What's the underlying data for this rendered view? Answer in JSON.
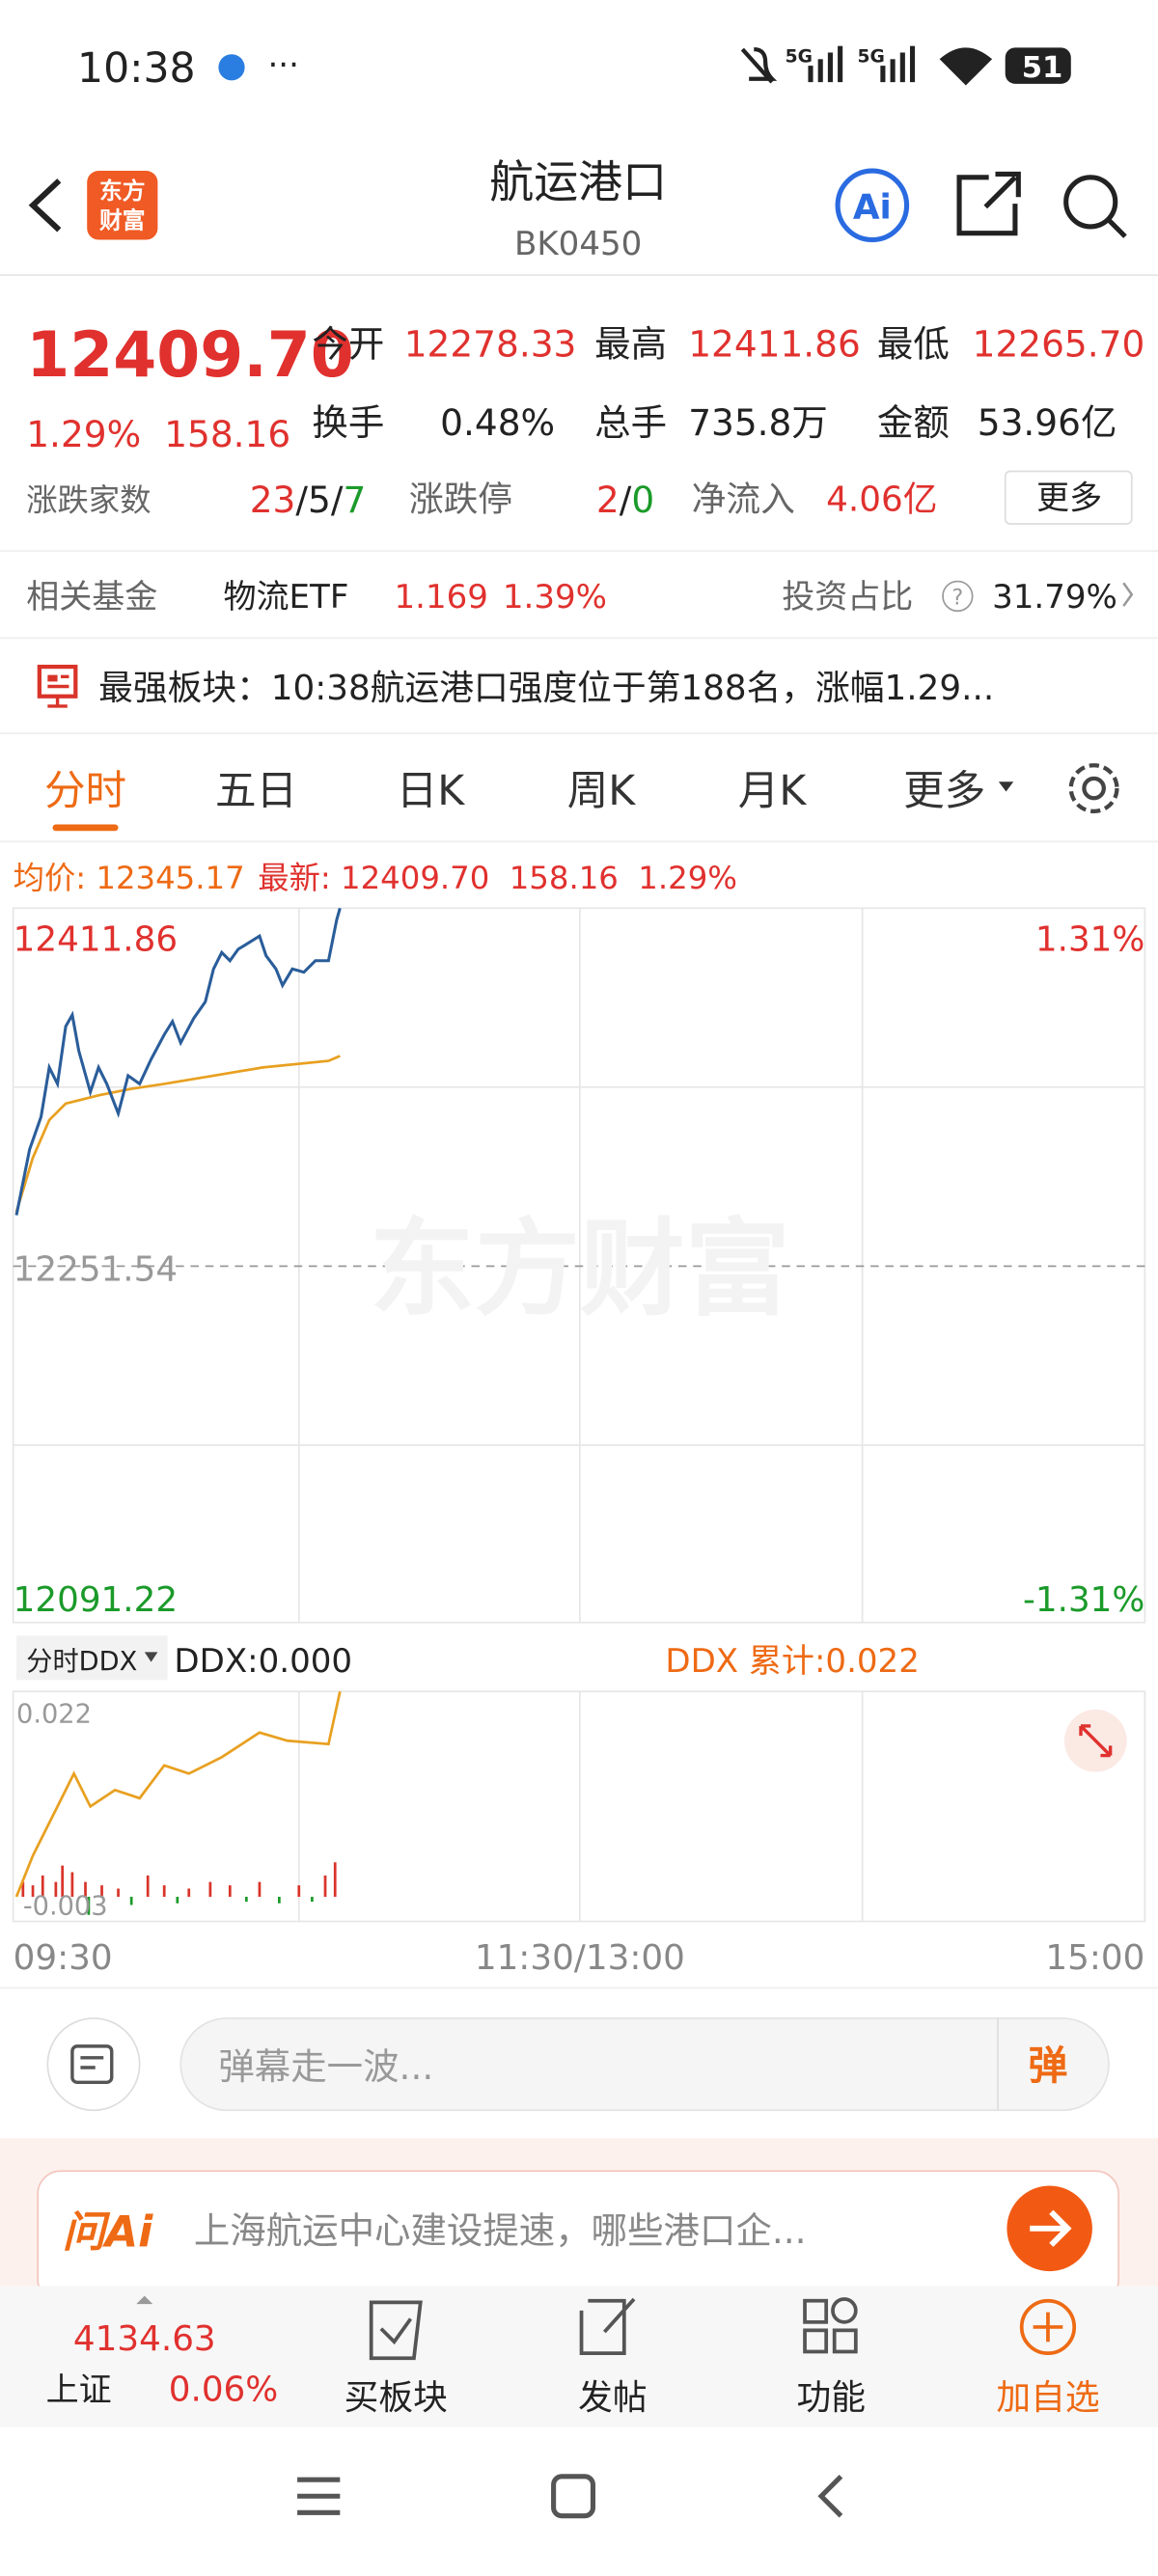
{
  "status": {
    "time": "10:38",
    "network": "5G",
    "battery": "51"
  },
  "header": {
    "title": "航运港口",
    "code": "BK0450",
    "logo": [
      "东方",
      "财富"
    ],
    "ai": "Ai"
  },
  "quote": {
    "price": "12409.70",
    "change_pct": "1.29%",
    "change": "158.16",
    "open_label": "今开",
    "open": "12278.33",
    "high_label": "最高",
    "high": "12411.86",
    "low_label": "最低",
    "low": "12265.70",
    "turnover_label": "换手",
    "turnover": "0.48%",
    "volume_label": "总手",
    "volume": "735.8万",
    "amount_label": "金额",
    "amount": "53.96亿",
    "breadth_label": "涨跌家数",
    "up": "23",
    "sep": "/",
    "flat": "5",
    "down": "7",
    "limit_label": "涨跌停",
    "limit_up": "2",
    "limit_down": "0",
    "net_inflow_label": "净流入",
    "net_inflow": "4.06亿",
    "more": "更多"
  },
  "fund": {
    "label": "相关基金",
    "name": "物流ETF",
    "price": "1.169",
    "pct": "1.39%",
    "ratio_label": "投资占比",
    "help": "?",
    "ratio": "31.79%"
  },
  "news": {
    "text": "最强板块：10:38航运港口强度位于第188名，涨幅1.29..."
  },
  "tabs": [
    "分时",
    "五日",
    "日K",
    "周K",
    "月K",
    "更多"
  ],
  "chart": {
    "avg_label": "均价:",
    "avg": "12345.17",
    "latest_label": "最新:",
    "latest": "12409.70",
    "latest_change": "158.16",
    "latest_pct": "1.29%",
    "y_high": "12411.86",
    "y_mid": "12251.54",
    "y_low": "12091.22",
    "pct_high": "1.31%",
    "pct_low": "-1.31%",
    "watermark": "东方财富",
    "ddx_selector": "分时DDX",
    "ddx": "DDX:0.000",
    "ddx_cum": "DDX 累计:0.022",
    "ddx_top": "0.022",
    "ddx_bottom": "-0.003",
    "times": [
      "09:30",
      "11:30/13:00",
      "15:00"
    ]
  },
  "danmaku": {
    "placeholder": "弹幕走一波...",
    "button": "弹"
  },
  "ai": {
    "logo": "问Ai",
    "text": "上海航运中心建设提速，哪些港口企..."
  },
  "bottom_nav": {
    "index_value": "4134.63",
    "index_name": "上证",
    "index_pct": "0.06%",
    "items": [
      "买板块",
      "发帖",
      "功能",
      "加自选"
    ]
  }
}
